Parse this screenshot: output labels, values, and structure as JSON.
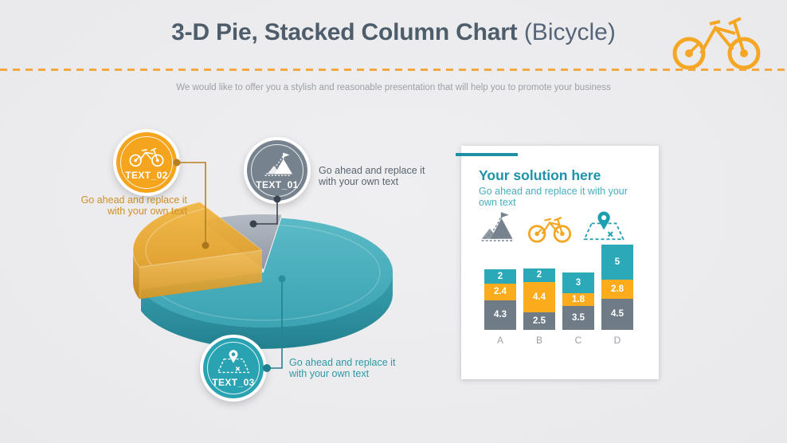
{
  "slide": {
    "title_main": "3-D Pie, Stacked Column Chart",
    "title_sub": " (Bicycle)",
    "subtitle": "We would like to offer you a stylish and reasonable presentation that will help you to promote your business",
    "accent_orange": "#F5A623",
    "accent_teal": "#2BA9B8",
    "accent_gray": "#76828E"
  },
  "badges": {
    "text01": {
      "label": "TEXT_01",
      "icon": "mountain-flag-icon",
      "color": "#76828E",
      "caption_line1": "Go ahead and replace it",
      "caption_line2": "with your own text"
    },
    "text02": {
      "label": "TEXT_02",
      "icon": "bicycle-icon",
      "color": "#F5A41E",
      "caption_line1": "Go ahead and replace it",
      "caption_line2": "with your own text"
    },
    "text03": {
      "label": "TEXT_03",
      "icon": "map-pin-icon",
      "color": "#29A3B2",
      "caption_line1": "Go ahead and replace it",
      "caption_line2": "with your own text"
    }
  },
  "card": {
    "title": "Your solution here",
    "subtitle": "Go ahead and replace it with your own text",
    "accent_color": "#1F90A5",
    "icons": [
      "mountain-flag-icon",
      "bicycle-icon",
      "map-pin-icon"
    ]
  },
  "chart_data": [
    {
      "type": "pie",
      "title": "3-D pie (values estimated from slice angles)",
      "slices": [
        {
          "label": "teal (TEXT_03)",
          "value": 70,
          "color": "#3FAFBD"
        },
        {
          "label": "orange (TEXT_02)",
          "value": 22,
          "color": "#EFAF35"
        },
        {
          "label": "gray (TEXT_01)",
          "value": 8,
          "color": "#9AA4AF"
        }
      ],
      "legend_position": "none"
    },
    {
      "type": "bar",
      "stacked": true,
      "categories": [
        "A",
        "B",
        "C",
        "D"
      ],
      "series": [
        {
          "name": "gray-bottom",
          "color": "#6F7C88",
          "values": [
            4.3,
            2.5,
            3.5,
            4.5
          ]
        },
        {
          "name": "orange-middle",
          "color": "#FBAC1D",
          "values": [
            2.4,
            4.4,
            1.8,
            2.8
          ]
        },
        {
          "name": "teal-top",
          "color": "#2BA9B8",
          "values": [
            2,
            2,
            3,
            5
          ]
        }
      ],
      "value_labels": true,
      "axes": "none"
    }
  ]
}
